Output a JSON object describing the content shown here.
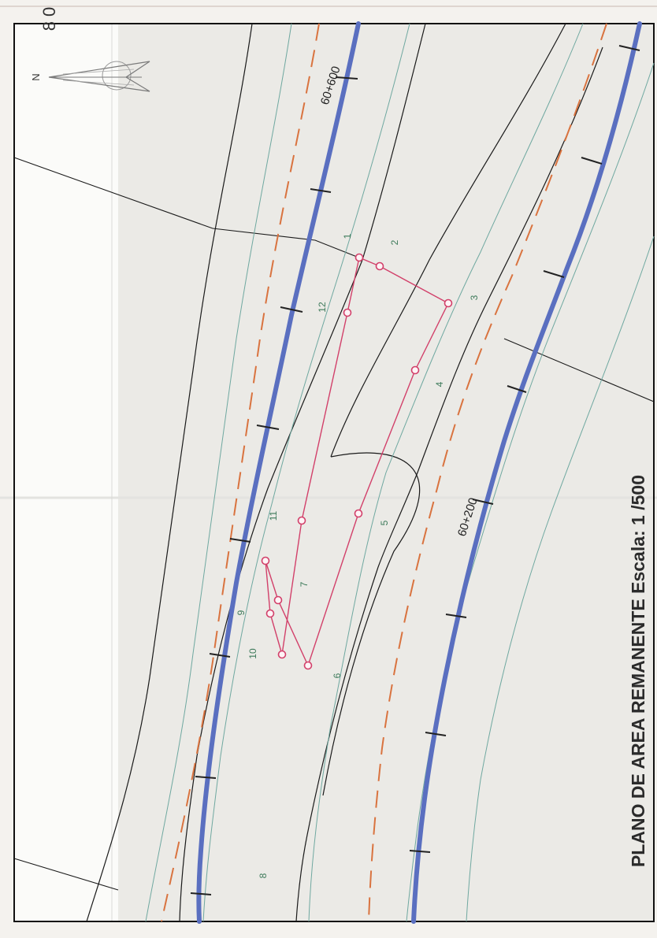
{
  "title": "PLANO DE AREA REMANENTE Escala: 1 /500",
  "north_label": "N",
  "stations": [
    "60+600",
    "60+200"
  ],
  "corner_mark": "8 0",
  "vertices": [
    "1",
    "2",
    "3",
    "4",
    "5",
    "6",
    "7",
    "8",
    "9",
    "10",
    "11",
    "12"
  ],
  "colors": {
    "road_axis": "#5a6fc0",
    "lane_dash": "#d9733f",
    "boundary": "#d2406a",
    "edge_line": "#1a1a1a",
    "shoulder": "#6fa8a0",
    "label_green": "#3d7a5a"
  }
}
